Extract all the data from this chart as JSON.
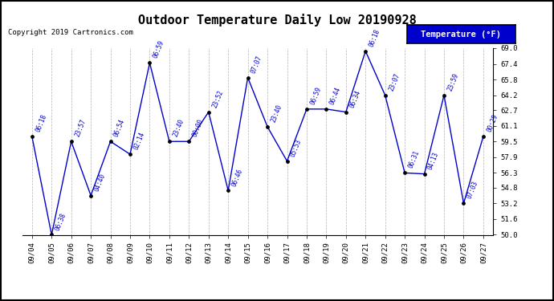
{
  "title": "Outdoor Temperature Daily Low 20190928",
  "copyright": "Copyright 2019 Cartronics.com",
  "legend_label": "Temperature (°F)",
  "dates": [
    "09/04",
    "09/05",
    "09/06",
    "09/07",
    "09/08",
    "09/09",
    "09/10",
    "09/11",
    "09/12",
    "09/13",
    "09/14",
    "09/15",
    "09/16",
    "09/17",
    "09/18",
    "09/19",
    "09/20",
    "09/21",
    "09/22",
    "09/23",
    "09/24",
    "09/25",
    "09/26",
    "09/27"
  ],
  "temps": [
    60.0,
    50.0,
    59.5,
    54.0,
    59.5,
    58.2,
    67.5,
    59.5,
    59.5,
    62.5,
    54.5,
    66.0,
    61.0,
    57.5,
    62.8,
    62.8,
    62.5,
    68.7,
    64.2,
    56.3,
    56.2,
    64.2,
    53.2,
    60.0
  ],
  "labels": [
    "06:18",
    "06:38",
    "23:57",
    "04:40",
    "06:54",
    "02:14",
    "06:59",
    "23:40",
    "00:00",
    "23:52",
    "06:46",
    "07:07",
    "23:40",
    "05:53",
    "06:59",
    "06:44",
    "06:34",
    "06:18",
    "23:07",
    "06:31",
    "04:13",
    "23:59",
    "07:03",
    "00:29"
  ],
  "ylim": [
    50.0,
    69.0
  ],
  "ytick_vals": [
    50.0,
    51.6,
    53.2,
    54.8,
    56.3,
    57.9,
    59.5,
    61.1,
    62.7,
    64.2,
    65.8,
    67.4,
    69.0
  ],
  "ytick_labels": [
    "50.0",
    "51.6",
    "53.2",
    "54.8",
    "56.3",
    "57.9",
    "59.5",
    "61.1",
    "62.7",
    "64.2",
    "65.8",
    "67.4",
    "69.0"
  ],
  "line_color": "#0000CC",
  "marker_color": "#000000",
  "label_color": "#0000CC",
  "bg_color": "#ffffff",
  "grid_color": "#aaaaaa",
  "title_fontsize": 11,
  "copyright_fontsize": 6.5,
  "tick_label_fontsize": 6.5,
  "data_label_fontsize": 5.5,
  "legend_bg": "#0000CC",
  "legend_fg": "#ffffff",
  "legend_fontsize": 7.5,
  "border_color": "#000000"
}
